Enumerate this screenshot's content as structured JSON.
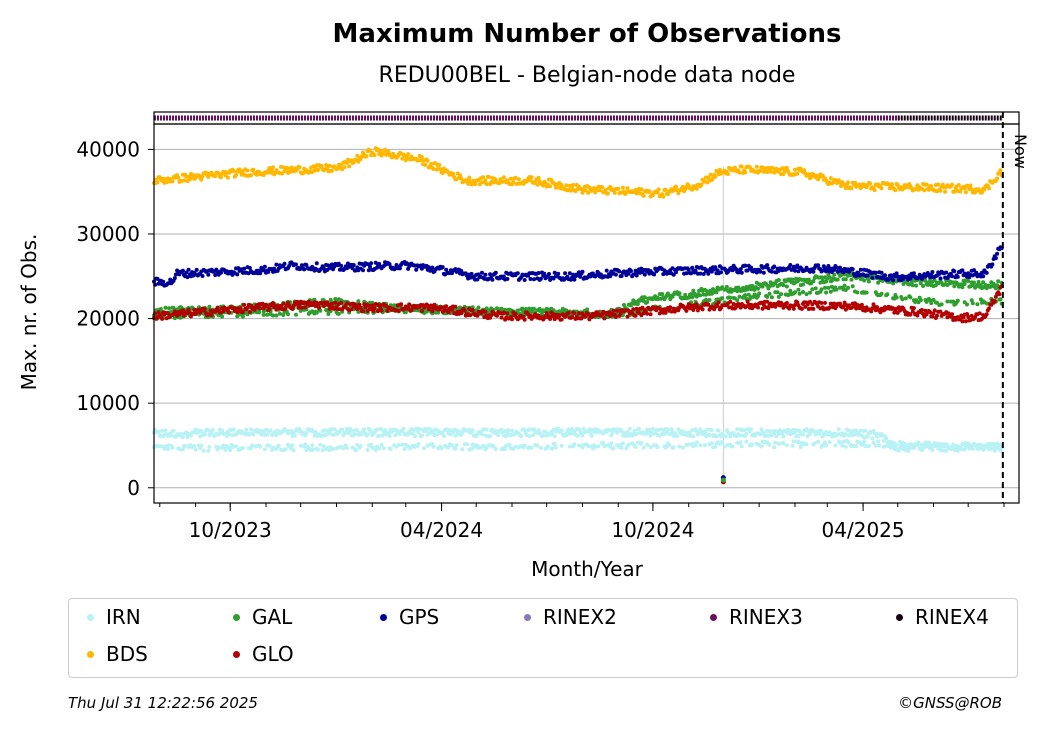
{
  "chart_data": {
    "type": "scatter",
    "title": "Maximum Number of Observations",
    "subtitle": "REDU00BEL - Belgian-node data node",
    "xlabel": "Month/Year",
    "ylabel": "Max. nr. of Obs.",
    "x_range": [
      "2023-07-27",
      "2025-08-14"
    ],
    "ylim": [
      -1800,
      43000
    ],
    "yticks": [
      0,
      10000,
      20000,
      30000,
      40000
    ],
    "xticks": [
      {
        "date": "2023-10-01",
        "label": "10/2023"
      },
      {
        "date": "2024-04-01",
        "label": "04/2024"
      },
      {
        "date": "2024-10-01",
        "label": "10/2024"
      },
      {
        "date": "2025-04-01",
        "label": "04/2025"
      }
    ],
    "grid": "horizontal",
    "now": {
      "date": "2025-07-31",
      "label": "Now"
    },
    "outage": {
      "date": "2024-12-01"
    },
    "format_bar": [
      {
        "name": "RINEX3",
        "from": "2023-07-27",
        "to": "2025-05-01"
      },
      {
        "name": "RINEX4",
        "from": "2025-05-01",
        "to": "2025-07-31"
      }
    ],
    "series": [
      {
        "name": "IRN",
        "color": "#b8f2f4",
        "values": [
          [
            0,
            6400
          ],
          [
            100,
            6500
          ],
          [
            200,
            6550
          ],
          [
            300,
            6500
          ],
          [
            400,
            6550
          ],
          [
            500,
            6500
          ],
          [
            600,
            6500
          ],
          [
            630,
            6200
          ],
          [
            640,
            4800
          ],
          [
            720,
            4800
          ]
        ],
        "alt": [
          [
            0,
            4700
          ],
          [
            200,
            4800
          ],
          [
            400,
            5000
          ],
          [
            600,
            5200
          ],
          [
            720,
            4900
          ]
        ]
      },
      {
        "name": "GAL",
        "color": "#2e9e2e",
        "values": [
          [
            0,
            20800
          ],
          [
            100,
            21300
          ],
          [
            150,
            22000
          ],
          [
            200,
            21300
          ],
          [
            300,
            20800
          ],
          [
            400,
            20600
          ],
          [
            420,
            22200
          ],
          [
            470,
            23000
          ],
          [
            520,
            23800
          ],
          [
            600,
            25000
          ],
          [
            660,
            24300
          ],
          [
            720,
            24000
          ]
        ],
        "alt": [
          [
            0,
            20300
          ],
          [
            200,
            21000
          ],
          [
            400,
            20500
          ],
          [
            520,
            22600
          ],
          [
            600,
            23600
          ],
          [
            680,
            21800
          ],
          [
            720,
            22000
          ]
        ]
      },
      {
        "name": "GPS",
        "color": "#000099",
        "values": [
          [
            0,
            24300
          ],
          [
            15,
            24300
          ],
          [
            20,
            25300
          ],
          [
            100,
            25800
          ],
          [
            120,
            26300
          ],
          [
            150,
            26000
          ],
          [
            220,
            26300
          ],
          [
            250,
            25700
          ],
          [
            280,
            25000
          ],
          [
            360,
            25000
          ],
          [
            420,
            25500
          ],
          [
            500,
            25800
          ],
          [
            580,
            26000
          ],
          [
            640,
            24900
          ],
          [
            700,
            25300
          ],
          [
            720,
            25300
          ],
          [
            733,
            28500
          ]
        ]
      },
      {
        "name": "GLO",
        "color": "#b30000",
        "values": [
          [
            0,
            20300
          ],
          [
            90,
            21300
          ],
          [
            140,
            21700
          ],
          [
            180,
            21300
          ],
          [
            240,
            21300
          ],
          [
            300,
            20300
          ],
          [
            380,
            20300
          ],
          [
            420,
            20800
          ],
          [
            480,
            21500
          ],
          [
            540,
            21600
          ],
          [
            600,
            21500
          ],
          [
            660,
            20800
          ],
          [
            700,
            20100
          ],
          [
            720,
            20300
          ],
          [
            733,
            23500
          ]
        ]
      },
      {
        "name": "BDS",
        "color": "#ffb700",
        "values": [
          [
            0,
            36300
          ],
          [
            80,
            37300
          ],
          [
            160,
            37800
          ],
          [
            190,
            39800
          ],
          [
            230,
            38800
          ],
          [
            270,
            36300
          ],
          [
            330,
            36300
          ],
          [
            370,
            35300
          ],
          [
            440,
            34800
          ],
          [
            470,
            35800
          ],
          [
            490,
            37300
          ],
          [
            510,
            37600
          ],
          [
            560,
            37300
          ],
          [
            600,
            35700
          ],
          [
            720,
            35300
          ],
          [
            733,
            37300
          ]
        ]
      }
    ],
    "legend": {
      "position": "bottom",
      "entries": [
        {
          "name": "IRN",
          "color": "#b8f2f4"
        },
        {
          "name": "GAL",
          "color": "#2e9e2e"
        },
        {
          "name": "GPS",
          "color": "#000099"
        },
        {
          "name": "RINEX2",
          "color": "#8877bb"
        },
        {
          "name": "RINEX3",
          "color": "#6b0f5c"
        },
        {
          "name": "RINEX4",
          "color": "#1a0014"
        },
        {
          "name": "BDS",
          "color": "#ffb700"
        },
        {
          "name": "GLO",
          "color": "#b30000"
        }
      ]
    }
  },
  "footer": {
    "timestamp": "Thu Jul 31 12:22:56 2025",
    "copyright": "©GNSS@ROB"
  }
}
